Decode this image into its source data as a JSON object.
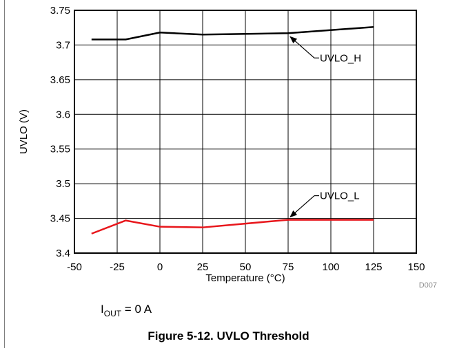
{
  "chart_data": {
    "type": "line",
    "xlabel": "Temperature (°C)",
    "ylabel": "UVLO (V)",
    "xlim": [
      -50,
      150
    ],
    "ylim": [
      3.4,
      3.75
    ],
    "x_ticks": [
      "-50",
      "-25",
      "0",
      "25",
      "50",
      "75",
      "100",
      "125",
      "150"
    ],
    "y_ticks": [
      "3.4",
      "3.45",
      "3.5",
      "3.55",
      "3.6",
      "3.65",
      "3.7",
      "3.75"
    ],
    "grid": true,
    "series": [
      {
        "name": "UVLO_H",
        "color": "#000000",
        "x": [
          -40,
          -20,
          0,
          25,
          75,
          125
        ],
        "y": [
          3.708,
          3.708,
          3.718,
          3.715,
          3.717,
          3.726
        ]
      },
      {
        "name": "UVLO_L",
        "color": "#e8161b",
        "x": [
          -40,
          -20,
          0,
          25,
          75,
          125
        ],
        "y": [
          3.428,
          3.447,
          3.438,
          3.437,
          3.448,
          3.448
        ]
      }
    ],
    "code": "D007"
  },
  "condition": {
    "base": "I",
    "sub": "OUT",
    "rest": " = 0 A"
  },
  "caption": "Figure 5-12. UVLO Threshold"
}
